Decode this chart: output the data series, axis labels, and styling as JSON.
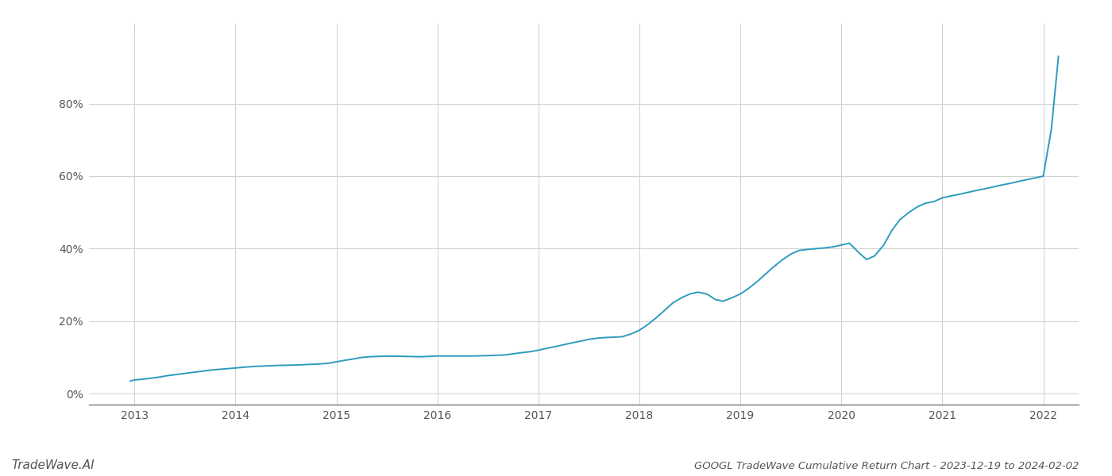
{
  "title": "GOOGL TradeWave Cumulative Return Chart - 2023-12-19 to 2024-02-02",
  "watermark": "TradeWave.AI",
  "line_color": "#2e9bbf",
  "background_color": "#ffffff",
  "grid_color": "#d0d0d0",
  "x_years": [
    2013,
    2014,
    2015,
    2016,
    2017,
    2018,
    2019,
    2020,
    2021,
    2022
  ],
  "y_ticks": [
    0,
    20,
    40,
    60,
    80
  ],
  "ylim": [
    -3,
    102
  ],
  "xlim": [
    2012.55,
    2022.35
  ],
  "data_x": [
    2012.96,
    2013.0,
    2013.08,
    2013.17,
    2013.25,
    2013.33,
    2013.42,
    2013.5,
    2013.58,
    2013.67,
    2013.75,
    2013.83,
    2013.92,
    2014.0,
    2014.08,
    2014.17,
    2014.25,
    2014.33,
    2014.42,
    2014.5,
    2014.58,
    2014.67,
    2014.75,
    2014.83,
    2014.92,
    2015.0,
    2015.08,
    2015.17,
    2015.25,
    2015.33,
    2015.42,
    2015.5,
    2015.58,
    2015.67,
    2015.75,
    2015.83,
    2015.92,
    2016.0,
    2016.08,
    2016.17,
    2016.25,
    2016.33,
    2016.42,
    2016.5,
    2016.58,
    2016.67,
    2016.75,
    2016.83,
    2016.92,
    2017.0,
    2017.08,
    2017.17,
    2017.25,
    2017.33,
    2017.42,
    2017.5,
    2017.58,
    2017.67,
    2017.75,
    2017.83,
    2017.92,
    2018.0,
    2018.08,
    2018.17,
    2018.25,
    2018.33,
    2018.42,
    2018.5,
    2018.58,
    2018.67,
    2018.75,
    2018.83,
    2018.92,
    2019.0,
    2019.08,
    2019.17,
    2019.25,
    2019.33,
    2019.42,
    2019.5,
    2019.58,
    2019.67,
    2019.75,
    2019.83,
    2019.92,
    2020.0,
    2020.08,
    2020.17,
    2020.25,
    2020.33,
    2020.42,
    2020.5,
    2020.58,
    2020.67,
    2020.75,
    2020.83,
    2020.92,
    2021.0,
    2021.08,
    2021.17,
    2021.25,
    2021.33,
    2021.42,
    2021.5,
    2021.58,
    2021.67,
    2021.75,
    2021.83,
    2021.92,
    2022.0,
    2022.08,
    2022.15
  ],
  "data_y": [
    3.5,
    3.8,
    4.0,
    4.3,
    4.6,
    5.0,
    5.3,
    5.6,
    5.9,
    6.2,
    6.5,
    6.7,
    6.9,
    7.1,
    7.3,
    7.5,
    7.6,
    7.7,
    7.8,
    7.85,
    7.9,
    8.0,
    8.1,
    8.2,
    8.4,
    8.8,
    9.2,
    9.6,
    10.0,
    10.2,
    10.3,
    10.35,
    10.35,
    10.3,
    10.25,
    10.2,
    10.3,
    10.4,
    10.4,
    10.4,
    10.4,
    10.4,
    10.45,
    10.5,
    10.6,
    10.7,
    11.0,
    11.3,
    11.6,
    12.0,
    12.5,
    13.0,
    13.5,
    14.0,
    14.5,
    15.0,
    15.3,
    15.5,
    15.6,
    15.7,
    16.5,
    17.5,
    19.0,
    21.0,
    23.0,
    25.0,
    26.5,
    27.5,
    28.0,
    27.5,
    26.0,
    25.5,
    26.5,
    27.5,
    29.0,
    31.0,
    33.0,
    35.0,
    37.0,
    38.5,
    39.5,
    39.8,
    40.0,
    40.2,
    40.5,
    41.0,
    41.5,
    39.0,
    37.0,
    38.0,
    41.0,
    45.0,
    48.0,
    50.0,
    51.5,
    52.5,
    53.0,
    54.0,
    54.5,
    55.0,
    55.5,
    56.0,
    56.5,
    57.0,
    57.5,
    58.0,
    58.5,
    59.0,
    59.5,
    60.0,
    73.0,
    93.0
  ],
  "line_width": 1.4,
  "title_fontsize": 9.5,
  "tick_fontsize": 10,
  "watermark_fontsize": 11,
  "spine_color": "#555555"
}
